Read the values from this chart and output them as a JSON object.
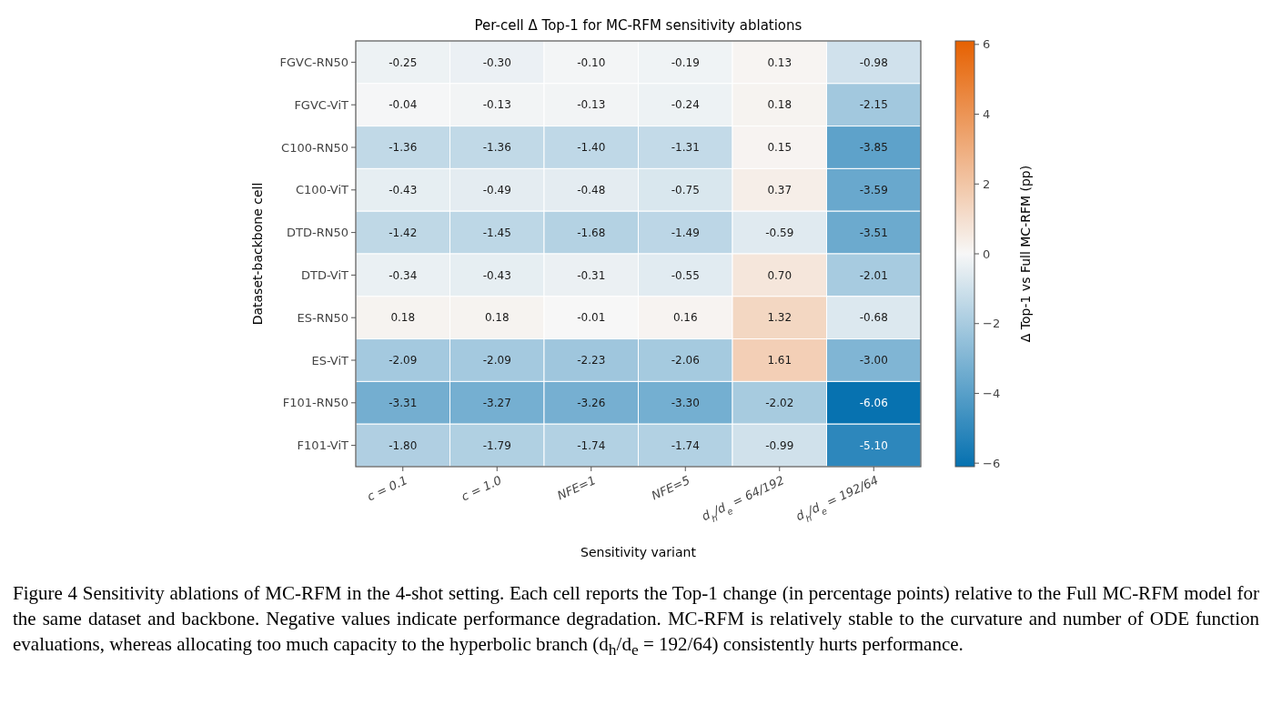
{
  "chart_data": {
    "type": "heatmap",
    "title": "Per-cell Δ Top-1 for MC-RFM sensitivity ablations",
    "xlabel": "Sensitivity variant",
    "ylabel": "Dataset-backbone cell",
    "clabel": "Δ Top-1 vs Full MC-RFM (pp)",
    "categories": [
      "c = 0.1",
      "c = 1.0",
      "NFE=1",
      "NFE=5",
      "d$_{h}$/d$_{e}$ = 64/192",
      "d$_{h}$/d$_{e}$ = 192/64"
    ],
    "y_categories": [
      "FGVC-RN50",
      "FGVC-ViT",
      "C100-RN50",
      "C100-ViT",
      "DTD-RN50",
      "DTD-ViT",
      "ES-RN50",
      "ES-ViT",
      "F101-RN50",
      "F101-ViT"
    ],
    "cells": [
      [
        -0.25,
        -0.3,
        -0.1,
        -0.19,
        0.13,
        -0.98
      ],
      [
        -0.04,
        -0.13,
        -0.13,
        -0.24,
        0.18,
        -2.15
      ],
      [
        -1.36,
        -1.36,
        -1.4,
        -1.31,
        0.15,
        -3.85
      ],
      [
        -0.43,
        -0.49,
        -0.48,
        -0.75,
        0.37,
        -3.59
      ],
      [
        -1.42,
        -1.45,
        -1.68,
        -1.49,
        -0.59,
        -3.51
      ],
      [
        -0.34,
        -0.43,
        -0.31,
        -0.55,
        0.7,
        -2.01
      ],
      [
        0.18,
        0.18,
        -0.01,
        0.16,
        1.32,
        -0.68
      ],
      [
        -2.09,
        -2.09,
        -2.23,
        -2.06,
        1.61,
        -3.0
      ],
      [
        -3.31,
        -3.27,
        -3.26,
        -3.3,
        -2.02,
        -6.06
      ],
      [
        -1.8,
        -1.79,
        -1.74,
        -1.74,
        -0.99,
        -5.1
      ]
    ],
    "cell_labels": [
      [
        "-0.25",
        "-0.30",
        "-0.10",
        "-0.19",
        "0.13",
        "-0.98"
      ],
      [
        "-0.04",
        "-0.13",
        "-0.13",
        "-0.24",
        "0.18",
        "-2.15"
      ],
      [
        "-1.36",
        "-1.36",
        "-1.40",
        "-1.31",
        "0.15",
        "-3.85"
      ],
      [
        "-0.43",
        "-0.49",
        "-0.48",
        "-0.75",
        "0.37",
        "-3.59"
      ],
      [
        "-1.42",
        "-1.45",
        "-1.68",
        "-1.49",
        "-0.59",
        "-3.51"
      ],
      [
        "-0.34",
        "-0.43",
        "-0.31",
        "-0.55",
        "0.70",
        "-2.01"
      ],
      [
        "0.18",
        "0.18",
        "-0.01",
        "0.16",
        "1.32",
        "-0.68"
      ],
      [
        "-2.09",
        "-2.09",
        "-2.23",
        "-2.06",
        "1.61",
        "-3.00"
      ],
      [
        "-3.31",
        "-3.27",
        "-3.26",
        "-3.30",
        "-2.02",
        "-6.06"
      ],
      [
        "-1.80",
        "-1.79",
        "-1.74",
        "-1.74",
        "-0.99",
        "-5.10"
      ]
    ],
    "clim": [
      -6.1,
      6.1
    ],
    "cticks": [
      {
        "value": -6,
        "label": "−6"
      },
      {
        "value": -4,
        "label": "−4"
      },
      {
        "value": -2,
        "label": "−2"
      },
      0,
      2,
      4,
      6
    ],
    "annotations": [
      "Figure 4  Sensitivity ablations of MC-RFM in the 4-shot setting. Each cell reports the Top-1 change (in percentage points) relative to the Full MC-RFM model for the same dataset and backbone. Negative values indicate performance degradation. MC-RFM is relatively stable to the curvature and number of ODE function evaluations, whereas allocating too much capacity to the hyperbolic branch (d$_{h}$/d$_{e}$ = 192/64) consistently hurts performance."
    ]
  }
}
